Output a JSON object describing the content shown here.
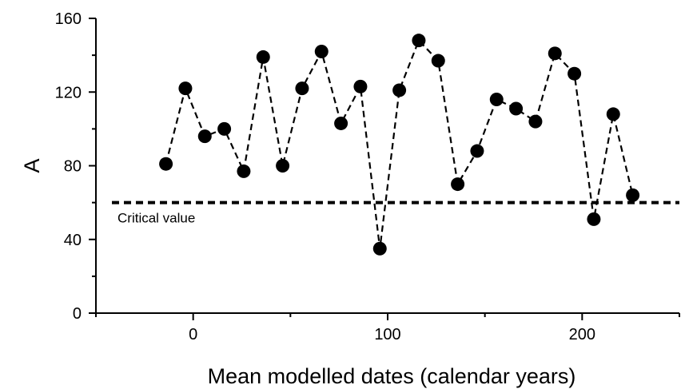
{
  "chart_data": {
    "type": "scatter",
    "title": "",
    "xlabel": "Mean modelled dates (calendar years)",
    "ylabel": "A",
    "xlim": [
      -50,
      250
    ],
    "ylim": [
      0,
      160
    ],
    "xticks": [
      0,
      100,
      200
    ],
    "yticks": [
      0,
      40,
      80,
      120,
      160
    ],
    "grid": false,
    "series": [
      {
        "style": "black filled circles joined by dashed line",
        "points": [
          {
            "x": -14,
            "y": 81
          },
          {
            "x": -4,
            "y": 122
          },
          {
            "x": 6,
            "y": 96
          },
          {
            "x": 16,
            "y": 100
          },
          {
            "x": 26,
            "y": 77
          },
          {
            "x": 36,
            "y": 139
          },
          {
            "x": 46,
            "y": 80
          },
          {
            "x": 56,
            "y": 122
          },
          {
            "x": 66,
            "y": 142
          },
          {
            "x": 76,
            "y": 103
          },
          {
            "x": 86,
            "y": 123
          },
          {
            "x": 96,
            "y": 35
          },
          {
            "x": 106,
            "y": 121
          },
          {
            "x": 116,
            "y": 148
          },
          {
            "x": 126,
            "y": 137
          },
          {
            "x": 136,
            "y": 70
          },
          {
            "x": 146,
            "y": 88
          },
          {
            "x": 156,
            "y": 116
          },
          {
            "x": 166,
            "y": 111
          },
          {
            "x": 176,
            "y": 104
          },
          {
            "x": 186,
            "y": 141
          },
          {
            "x": 196,
            "y": 130
          },
          {
            "x": 206,
            "y": 51
          },
          {
            "x": 216,
            "y": 108
          },
          {
            "x": 226,
            "y": 64
          }
        ]
      }
    ],
    "reference_line": {
      "y": 60,
      "label": "Critical value",
      "style": "dashed"
    }
  }
}
